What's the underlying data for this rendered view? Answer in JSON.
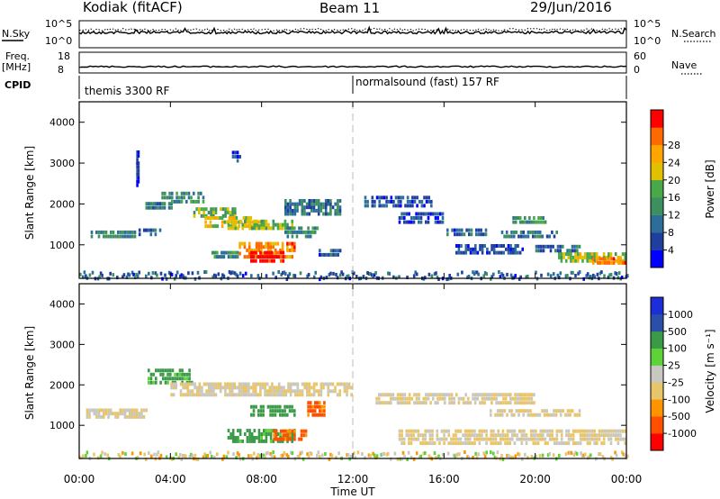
{
  "header": {
    "station": "Kodiak (fitACF)",
    "beam": "Beam 11",
    "date": "29/Jun/2016"
  },
  "noise_panel": {
    "left_label": "N.Sky",
    "right_label": "N.Search",
    "left_ticks": [
      "10^5",
      "10^0"
    ],
    "right_ticks": [
      "10^5",
      "10^0"
    ]
  },
  "freq_panel": {
    "left_label_line1": "Freq.",
    "left_label_line2": "[MHz]",
    "right_label": "Nave",
    "left_ticks": [
      "18",
      "8"
    ],
    "right_ticks": [
      "60",
      "0"
    ]
  },
  "cpid_panel": {
    "label": "CPID",
    "modes": [
      "themis 3300 RF",
      "normalsound (fast) 157 RF"
    ]
  },
  "time_axis": {
    "label": "Time UT",
    "ticks": [
      "00:00",
      "04:00",
      "08:00",
      "12:00",
      "16:00",
      "20:00",
      "00:00"
    ]
  },
  "colors": {
    "power": [
      "#0000ff",
      "#1f3f9f",
      "#2c6d9a",
      "#3d8f5f",
      "#49a84a",
      "#e0c000",
      "#ffa500",
      "#ff6a00",
      "#ff0000"
    ],
    "velocity": [
      "#ff0000",
      "#ff5000",
      "#ff9400",
      "#e9c56a",
      "#c8c8c0",
      "#5fd23a",
      "#3a9a48",
      "#2a4fa8",
      "#1c2ed8"
    ]
  },
  "chart_data": [
    {
      "type": "heatmap",
      "name": "power",
      "xlabel": "Time UT",
      "ylabel": "Slant Range [km]",
      "xlim": [
        0,
        24
      ],
      "ylim": [
        180,
        4500
      ],
      "yticks": [
        "1000",
        "2000",
        "3000",
        "4000"
      ],
      "colorbar": {
        "label": "Power [dB]",
        "range": [
          0,
          30
        ],
        "ticks": [
          "4",
          "8",
          "12",
          "16",
          "20",
          "24",
          "28"
        ]
      },
      "regions": [
        {
          "t": [
            0.5,
            2.5
          ],
          "r": [
            1250,
            1450
          ],
          "value": 10
        },
        {
          "t": [
            2.6,
            3.6
          ],
          "r": [
            1300,
            1500
          ],
          "value": 7
        },
        {
          "t": [
            2.8,
            4.2
          ],
          "r": [
            1950,
            2150
          ],
          "value": 9
        },
        {
          "t": [
            3.5,
            5.5
          ],
          "r": [
            2100,
            2400
          ],
          "value": 11
        },
        {
          "t": [
            5.0,
            7.0
          ],
          "r": [
            1750,
            2000
          ],
          "value": 14
        },
        {
          "t": [
            5.5,
            8.0
          ],
          "r": [
            1500,
            1800
          ],
          "value": 18
        },
        {
          "t": [
            6.5,
            9.5
          ],
          "r": [
            1450,
            1700
          ],
          "value": 16
        },
        {
          "t": [
            7.0,
            9.5
          ],
          "r": [
            750,
            1150
          ],
          "value": 23
        },
        {
          "t": [
            7.5,
            9.0
          ],
          "r": [
            650,
            950
          ],
          "value": 28
        },
        {
          "t": [
            9.0,
            11.5
          ],
          "r": [
            1800,
            2200
          ],
          "value": 9
        },
        {
          "t": [
            9.0,
            10.5
          ],
          "r": [
            1250,
            1550
          ],
          "value": 11
        },
        {
          "t": [
            10.5,
            11.5
          ],
          "r": [
            800,
            1000
          ],
          "value": 7
        },
        {
          "t": [
            5.8,
            7.0
          ],
          "r": [
            750,
            950
          ],
          "value": 12
        },
        {
          "t": [
            12.5,
            15.5
          ],
          "r": [
            2000,
            2300
          ],
          "value": 6
        },
        {
          "t": [
            14.0,
            16.0
          ],
          "r": [
            1600,
            1900
          ],
          "value": 5
        },
        {
          "t": [
            16.0,
            18.0
          ],
          "r": [
            1300,
            1500
          ],
          "value": 7
        },
        {
          "t": [
            16.5,
            19.5
          ],
          "r": [
            850,
            1100
          ],
          "value": 6
        },
        {
          "t": [
            18.5,
            21.0
          ],
          "r": [
            1250,
            1450
          ],
          "value": 9
        },
        {
          "t": [
            19.0,
            20.5
          ],
          "r": [
            1600,
            1800
          ],
          "value": 13
        },
        {
          "t": [
            21.0,
            24.0
          ],
          "r": [
            650,
            900
          ],
          "value": 17
        },
        {
          "t": [
            22.5,
            24.0
          ],
          "r": [
            600,
            800
          ],
          "value": 24
        },
        {
          "t": [
            20.0,
            22.0
          ],
          "r": [
            900,
            1100
          ],
          "value": 8
        },
        {
          "t": [
            6.7,
            7.1
          ],
          "r": [
            3100,
            3400
          ],
          "value": 5
        },
        {
          "t": [
            2.5,
            2.6
          ],
          "r": [
            2500,
            3400
          ],
          "value": 5
        }
      ]
    },
    {
      "type": "heatmap",
      "name": "velocity",
      "xlabel": "Time UT",
      "ylabel": "Slant Range [km]",
      "xlim": [
        0,
        24
      ],
      "ylim": [
        180,
        4500
      ],
      "yticks": [
        "1000",
        "2000",
        "3000",
        "4000"
      ],
      "colorbar": {
        "label": "Velocity [m s⁻¹]",
        "ticks": [
          "1000",
          "500",
          "100",
          "25",
          "-25",
          "-100",
          "-500",
          "-1000"
        ]
      },
      "regions": [
        {
          "t": [
            0.3,
            3.0
          ],
          "r": [
            1250,
            1500
          ],
          "value": 0
        },
        {
          "t": [
            3.0,
            5.0
          ],
          "r": [
            2100,
            2500
          ],
          "value": 150
        },
        {
          "t": [
            4.0,
            12.0
          ],
          "r": [
            1800,
            2150
          ],
          "value": 0
        },
        {
          "t": [
            6.5,
            9.5
          ],
          "r": [
            650,
            1000
          ],
          "value": 150
        },
        {
          "t": [
            7.5,
            9.5
          ],
          "r": [
            1300,
            1600
          ],
          "value": 300
        },
        {
          "t": [
            8.5,
            10.0
          ],
          "r": [
            700,
            1000
          ],
          "value": -150
        },
        {
          "t": [
            10.0,
            10.8
          ],
          "r": [
            1300,
            1700
          ],
          "value": -150
        },
        {
          "t": [
            13.0,
            20.0
          ],
          "r": [
            1600,
            1900
          ],
          "value": 0
        },
        {
          "t": [
            14.0,
            24.0
          ],
          "r": [
            600,
            1000
          ],
          "value": 0
        },
        {
          "t": [
            18.0,
            22.0
          ],
          "r": [
            1300,
            1500
          ],
          "value": 0
        }
      ]
    }
  ]
}
